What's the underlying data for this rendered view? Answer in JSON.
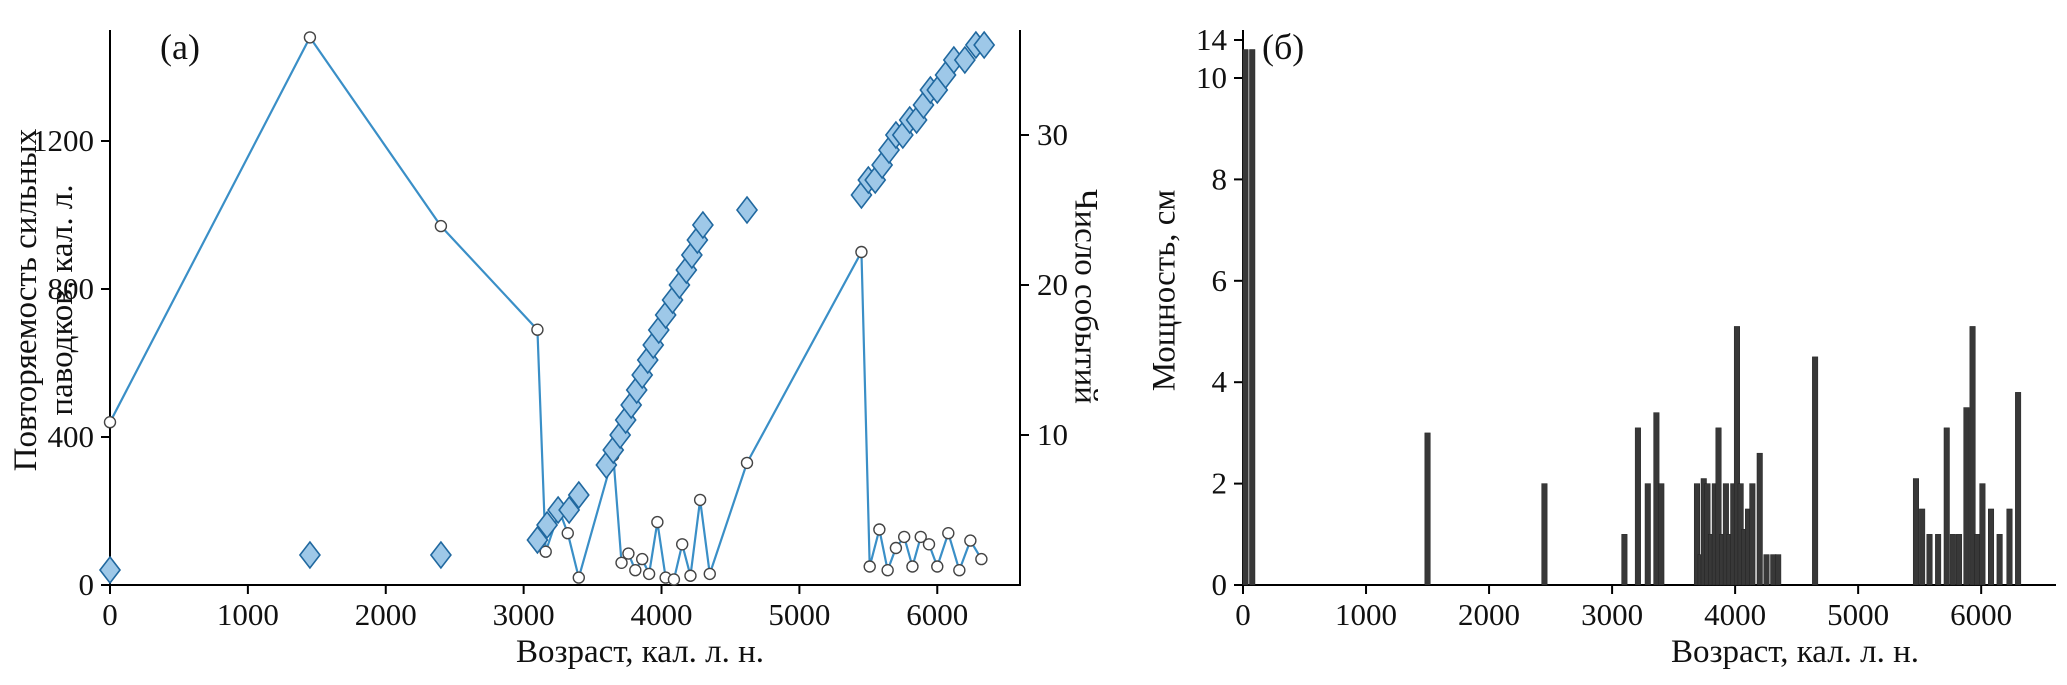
{
  "figure": {
    "panel_a_label": "(а)",
    "panel_b_label": "(б)",
    "panel_a": {
      "ylabel_left_line1": "Повторяемость сильных",
      "ylabel_left_line2": "паводков, кал. л.",
      "ylabel_right": "Число событий",
      "xlabel": "Возраст, кал. л. н."
    },
    "panel_b": {
      "ylabel": "Мощность, см",
      "xlabel": "Возраст, кал. л. н."
    }
  },
  "chart_data": [
    {
      "panel": "(а)",
      "type": "line",
      "title": "",
      "xlabel": "Возраст, кал. л. н.",
      "xlim": [
        0,
        6600
      ],
      "x_ticks": [
        0,
        1000,
        2000,
        3000,
        4000,
        5000,
        6000
      ],
      "grid": false,
      "left_axis": {
        "label": "Повторяемость сильных паводков, кал. л.",
        "ylim": [
          0,
          1500
        ],
        "ticks": [
          0,
          400,
          800,
          1200
        ]
      },
      "right_axis": {
        "label": "Число событий",
        "ylim": [
          0,
          37
        ],
        "ticks": [
          10,
          20,
          30
        ]
      },
      "series": [
        {
          "name": "Повторяемость сильных паводков, кал. л.",
          "axis": "left",
          "type": "line",
          "marker": "circle",
          "color": "#3a8fc7",
          "marker_fill": "#ffffff",
          "marker_stroke": "#444444",
          "points": [
            [
              0,
              440
            ],
            [
              1450,
              1480
            ],
            [
              2400,
              970
            ],
            [
              3100,
              690
            ],
            [
              3160,
              90
            ],
            [
              3260,
              200
            ],
            [
              3320,
              140
            ],
            [
              3400,
              20
            ],
            [
              3650,
              350
            ],
            [
              3710,
              60
            ],
            [
              3760,
              85
            ],
            [
              3810,
              40
            ],
            [
              3860,
              70
            ],
            [
              3910,
              30
            ],
            [
              3970,
              170
            ],
            [
              4030,
              20
            ],
            [
              4090,
              15
            ],
            [
              4150,
              110
            ],
            [
              4210,
              25
            ],
            [
              4280,
              230
            ],
            [
              4350,
              30
            ],
            [
              4620,
              330
            ],
            [
              5450,
              900
            ],
            [
              5510,
              50
            ],
            [
              5580,
              150
            ],
            [
              5640,
              40
            ],
            [
              5700,
              100
            ],
            [
              5760,
              130
            ],
            [
              5820,
              50
            ],
            [
              5880,
              130
            ],
            [
              5940,
              110
            ],
            [
              6000,
              50
            ],
            [
              6080,
              140
            ],
            [
              6160,
              40
            ],
            [
              6240,
              120
            ],
            [
              6320,
              70
            ]
          ]
        },
        {
          "name": "Число событий",
          "axis": "right",
          "type": "scatter",
          "marker": "diamond",
          "color": "#9ec8e8",
          "marker_stroke": "#20689f",
          "points": [
            [
              0,
              1
            ],
            [
              1450,
              2
            ],
            [
              2400,
              2
            ],
            [
              3100,
              3
            ],
            [
              3170,
              4
            ],
            [
              3250,
              5
            ],
            [
              3330,
              5
            ],
            [
              3400,
              6
            ],
            [
              3600,
              8
            ],
            [
              3650,
              9
            ],
            [
              3700,
              10
            ],
            [
              3740,
              11
            ],
            [
              3780,
              12
            ],
            [
              3820,
              13
            ],
            [
              3860,
              14
            ],
            [
              3900,
              15
            ],
            [
              3940,
              16
            ],
            [
              3980,
              17
            ],
            [
              4030,
              18
            ],
            [
              4080,
              19
            ],
            [
              4130,
              20
            ],
            [
              4180,
              21
            ],
            [
              4220,
              22
            ],
            [
              4260,
              23
            ],
            [
              4300,
              24
            ],
            [
              4620,
              25
            ],
            [
              5450,
              26
            ],
            [
              5500,
              27
            ],
            [
              5550,
              27
            ],
            [
              5600,
              28
            ],
            [
              5650,
              29
            ],
            [
              5700,
              30
            ],
            [
              5750,
              30
            ],
            [
              5800,
              31
            ],
            [
              5850,
              31
            ],
            [
              5900,
              32
            ],
            [
              5950,
              33
            ],
            [
              6000,
              33
            ],
            [
              6060,
              34
            ],
            [
              6120,
              35
            ],
            [
              6200,
              35
            ],
            [
              6280,
              36
            ],
            [
              6340,
              36
            ]
          ]
        }
      ]
    },
    {
      "panel": "(б)",
      "type": "bar",
      "title": "",
      "xlabel": "Возраст, кал. л. н.",
      "ylabel": "Мощность, см",
      "xlim": [
        0,
        6600
      ],
      "x_ticks": [
        0,
        1000,
        2000,
        3000,
        4000,
        5000,
        6000
      ],
      "y_ticks": [
        0,
        2,
        4,
        6,
        8,
        10,
        14
      ],
      "axis_break_after": 10,
      "grid": false,
      "bar_color": "#383838",
      "bars": [
        [
          20,
          13
        ],
        [
          75,
          13
        ],
        [
          1500,
          3
        ],
        [
          2450,
          2
        ],
        [
          3100,
          1
        ],
        [
          3210,
          3.1
        ],
        [
          3290,
          2
        ],
        [
          3360,
          3.4
        ],
        [
          3400,
          2
        ],
        [
          3690,
          2
        ],
        [
          3720,
          0.6
        ],
        [
          3745,
          2.1
        ],
        [
          3775,
          2
        ],
        [
          3805,
          1
        ],
        [
          3835,
          2
        ],
        [
          3865,
          3.1
        ],
        [
          3895,
          1
        ],
        [
          3925,
          2
        ],
        [
          3955,
          1
        ],
        [
          3985,
          2
        ],
        [
          4015,
          5.1
        ],
        [
          4045,
          2
        ],
        [
          4075,
          1.1
        ],
        [
          4105,
          1.5
        ],
        [
          4140,
          2
        ],
        [
          4200,
          2.6
        ],
        [
          4255,
          0.6
        ],
        [
          4310,
          0.6
        ],
        [
          4350,
          0.6
        ],
        [
          4650,
          4.5
        ],
        [
          5470,
          2.1
        ],
        [
          5520,
          1.5
        ],
        [
          5580,
          1
        ],
        [
          5650,
          1
        ],
        [
          5720,
          3.1
        ],
        [
          5770,
          1
        ],
        [
          5820,
          1
        ],
        [
          5880,
          3.5
        ],
        [
          5930,
          5.1
        ],
        [
          5970,
          1
        ],
        [
          6010,
          2
        ],
        [
          6080,
          1.5
        ],
        [
          6150,
          1
        ],
        [
          6230,
          1.5
        ],
        [
          6300,
          3.8
        ]
      ]
    }
  ]
}
